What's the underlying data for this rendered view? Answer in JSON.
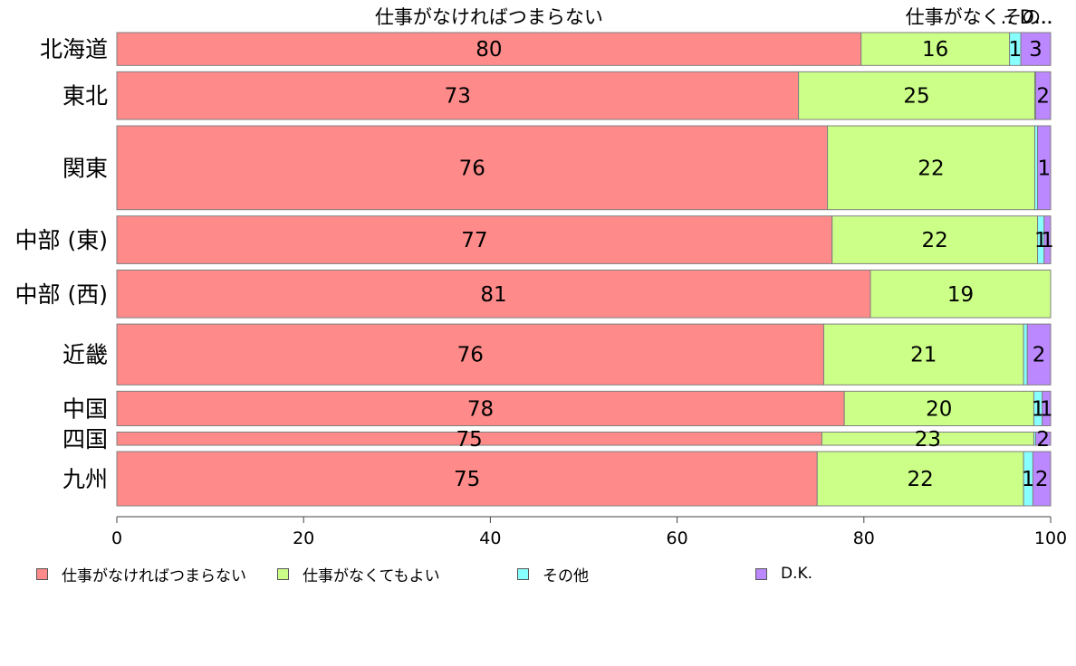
{
  "chart_data": {
    "type": "bar",
    "orientation": "horizontal",
    "stacked": true,
    "categories": [
      "北海道",
      "東北",
      "関東",
      "中部 (東)",
      "中部 (西)",
      "近畿",
      "中国",
      "四国",
      "九州"
    ],
    "series": [
      {
        "name": "仕事がなければつまらない",
        "color": "#ff8a8a",
        "values": [
          79.7,
          73.0,
          76.1,
          76.6,
          80.7,
          75.7,
          77.9,
          75.5,
          75.0
        ]
      },
      {
        "name": "仕事がなくてもよい",
        "color": "#ccff88",
        "values": [
          15.9,
          25.3,
          22.2,
          22.0,
          19.3,
          21.4,
          20.3,
          22.7,
          22.1
        ]
      },
      {
        "name": "その他",
        "color": "#88ffff",
        "values": [
          1.2,
          0.1,
          0.3,
          0.7,
          0.0,
          0.4,
          0.9,
          0.2,
          1.0
        ]
      },
      {
        "name": "D.K.",
        "color": "#bb88ff",
        "values": [
          3.2,
          1.6,
          1.4,
          0.7,
          0.0,
          2.5,
          0.9,
          1.6,
          1.9
        ]
      }
    ],
    "labels": [
      [
        "80",
        "16",
        "1",
        "3"
      ],
      [
        "73",
        "25",
        "",
        "2"
      ],
      [
        "76",
        "22",
        "",
        "1"
      ],
      [
        "77",
        "22",
        "1",
        "1"
      ],
      [
        "81",
        "19",
        "",
        ""
      ],
      [
        "76",
        "21",
        "",
        "2"
      ],
      [
        "78",
        "20",
        "1",
        "1"
      ],
      [
        "75",
        "23",
        "",
        "2"
      ],
      [
        "75",
        "22",
        "1",
        "2"
      ]
    ],
    "row_weights": [
      1,
      1.45,
      2.55,
      1.45,
      1.45,
      1.85,
      1.05,
      0.4,
      1.65
    ],
    "top_labels": [
      "仕事がなければつまらない",
      "仕事がなくてもよい",
      "その他",
      "D.K."
    ],
    "top_labels_shown": [
      "仕事がなければつまらない",
      "仕事がなく..",
      "その..",
      "D..."
    ],
    "xlim": [
      0,
      100
    ],
    "xticks": [
      0,
      20,
      40,
      60,
      80,
      100
    ],
    "xlabel": "",
    "ylabel": "",
    "title": "",
    "grid": false,
    "legend_position": "bottom"
  }
}
